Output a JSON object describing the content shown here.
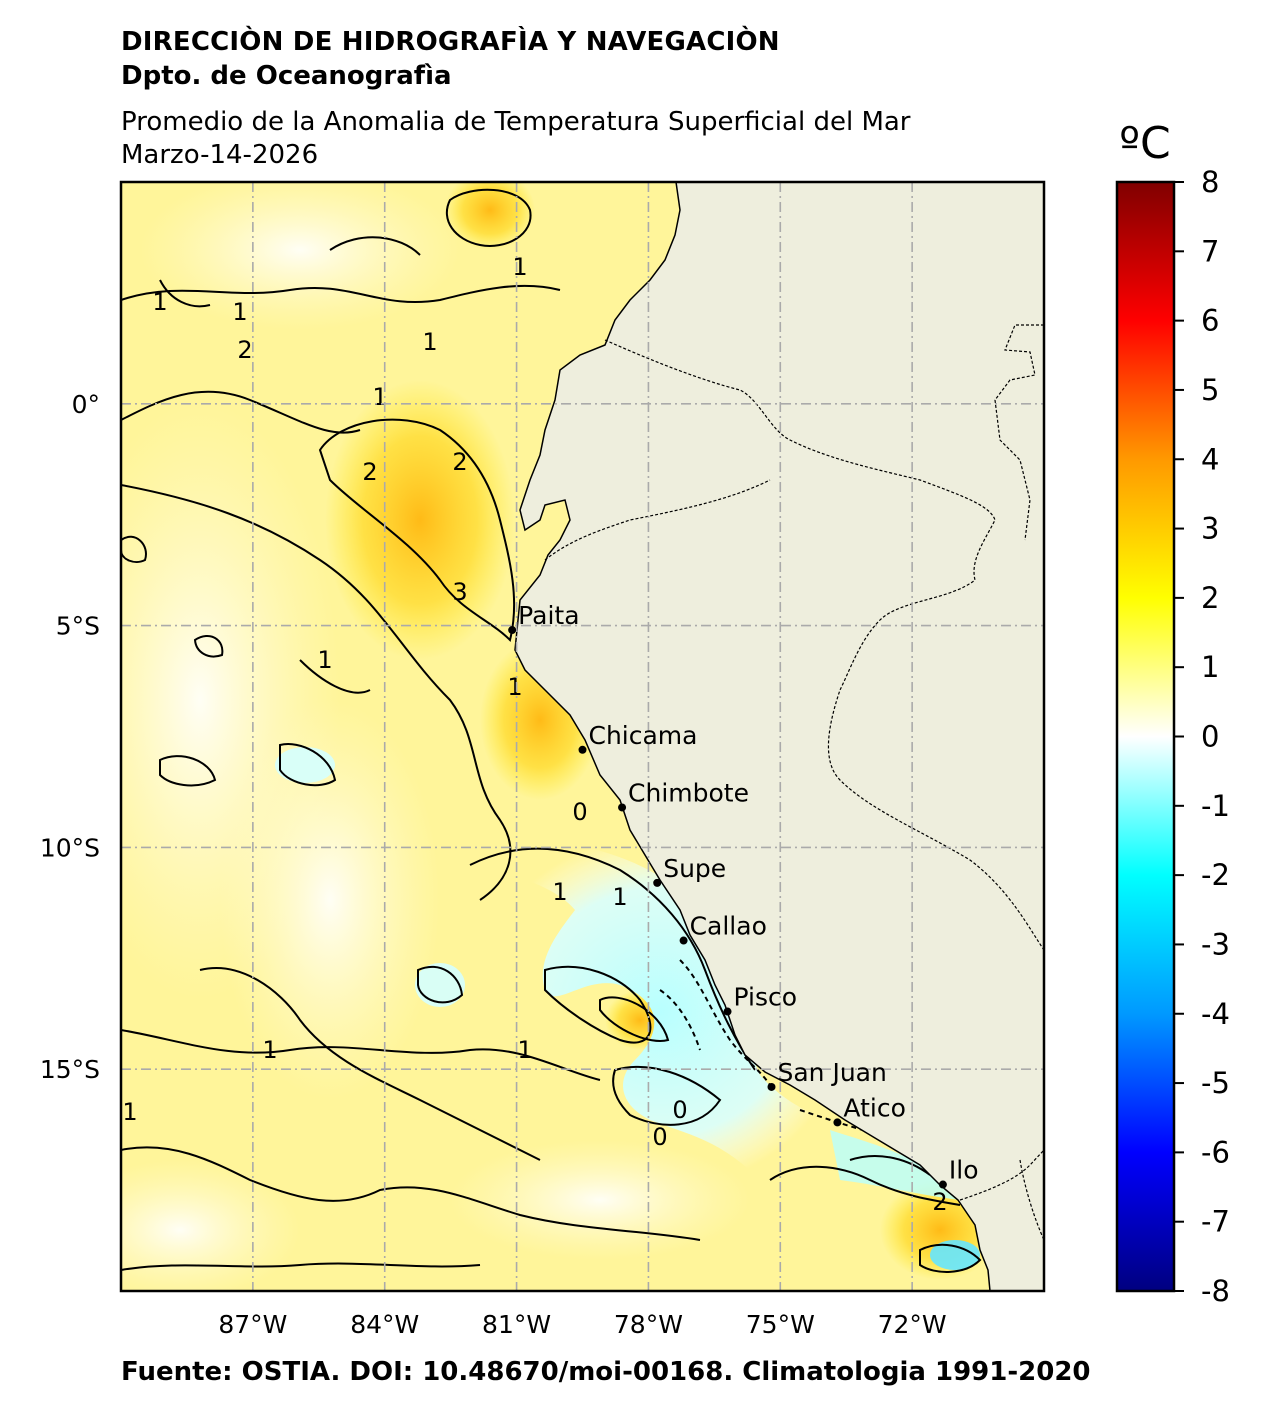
{
  "header": {
    "org": "DIRECCIÒN DE HIDROGRAFÌA Y NAVEGACIÒN",
    "dept": "Dpto. de Oceanografìa",
    "title": "Promedio de la Anomalia de Temperatura Superficial del Mar",
    "date": "Marzo-14-2026"
  },
  "footer": "Fuente: OSTIA. DOI: 10.48670/moi-00168. Climatologia 1991-2020",
  "map": {
    "lon_range": [
      -90,
      -69
    ],
    "lat_range": [
      -20,
      5
    ],
    "lon_ticks": [
      {
        "value": -87,
        "label": "87°W"
      },
      {
        "value": -84,
        "label": "84°W"
      },
      {
        "value": -81,
        "label": "81°W"
      },
      {
        "value": -78,
        "label": "78°W"
      },
      {
        "value": -75,
        "label": "75°W"
      },
      {
        "value": -72,
        "label": "72°W"
      }
    ],
    "lat_ticks": [
      {
        "value": 0,
        "label": "0°"
      },
      {
        "value": -5,
        "label": "5°S"
      },
      {
        "value": -10,
        "label": "10°S"
      },
      {
        "value": -15,
        "label": "15°S"
      }
    ],
    "grid": true,
    "land_color": "#eeeedd",
    "ocean_base_color": "#fff59a"
  },
  "cities": [
    {
      "name": "Paita",
      "lon": -81.1,
      "lat": -5.1
    },
    {
      "name": "Chicama",
      "lon": -79.5,
      "lat": -7.8
    },
    {
      "name": "Chimbote",
      "lon": -78.6,
      "lat": -9.1
    },
    {
      "name": "Supe",
      "lon": -77.8,
      "lat": -10.8
    },
    {
      "name": "Callao",
      "lon": -77.2,
      "lat": -12.1
    },
    {
      "name": "Pisco",
      "lon": -76.2,
      "lat": -13.7
    },
    {
      "name": "San Juan",
      "lon": -75.2,
      "lat": -15.4
    },
    {
      "name": "Atico",
      "lon": -73.7,
      "lat": -16.2
    },
    {
      "name": "Ilo",
      "lon": -71.3,
      "lat": -17.6
    }
  ],
  "colorbar": {
    "unit": "ºC",
    "min": -8,
    "max": 8,
    "ticks": [
      8,
      7,
      6,
      5,
      4,
      3,
      2,
      1,
      0,
      -1,
      -2,
      -3,
      -4,
      -5,
      -6,
      -7,
      -8
    ],
    "stops": [
      {
        "v": 8,
        "c": "#800000"
      },
      {
        "v": 6,
        "c": "#ff0000"
      },
      {
        "v": 4,
        "c": "#ff9900"
      },
      {
        "v": 2,
        "c": "#ffff00"
      },
      {
        "v": 0,
        "c": "#ffffff"
      },
      {
        "v": -2,
        "c": "#00ffff"
      },
      {
        "v": -4,
        "c": "#0099ff"
      },
      {
        "v": -6,
        "c": "#0000ff"
      },
      {
        "v": -8,
        "c": "#000080"
      }
    ]
  },
  "contour_labels": [
    "1",
    "1",
    "1",
    "2",
    "1",
    "1",
    "2",
    "2",
    "3",
    "1",
    "1",
    "0",
    "1",
    "1",
    "0",
    "1",
    "0",
    "1",
    "1",
    "2"
  ]
}
